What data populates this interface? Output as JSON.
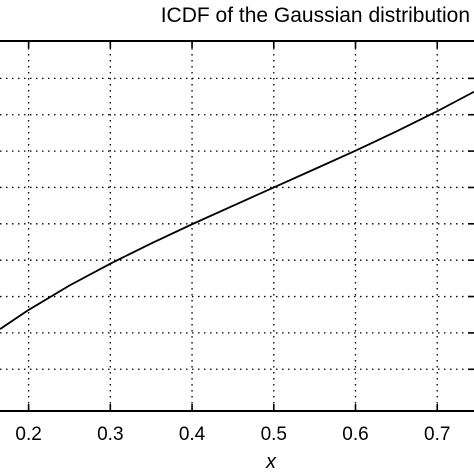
{
  "chart_data": {
    "type": "line",
    "title": "ICDF of the Gaussian distribution",
    "xlabel": "x",
    "ylabel": "",
    "xlim": [
      0.165,
      0.745
    ],
    "ylim": [
      -1.53,
      1.0
    ],
    "grid": true,
    "x_ticks": [
      0.2,
      0.3,
      0.4,
      0.5,
      0.6,
      0.7
    ],
    "x_tick_labels": [
      "0.2",
      "0.3",
      "0.4",
      "0.5",
      "0.6",
      "0.7"
    ],
    "y_gridlines": [
      0.75,
      0.5,
      0.25,
      0.0,
      -0.25,
      -0.5,
      -0.75,
      -1.0,
      -1.25
    ],
    "series": [
      {
        "x": [
          0.165,
          0.2,
          0.25,
          0.3,
          0.35,
          0.4,
          0.45,
          0.5,
          0.55,
          0.6,
          0.65,
          0.7,
          0.745
        ],
        "y": [
          -0.974,
          -0.842,
          -0.674,
          -0.524,
          -0.385,
          -0.253,
          -0.126,
          0.0,
          0.126,
          0.253,
          0.385,
          0.524,
          0.658
        ]
      }
    ]
  }
}
